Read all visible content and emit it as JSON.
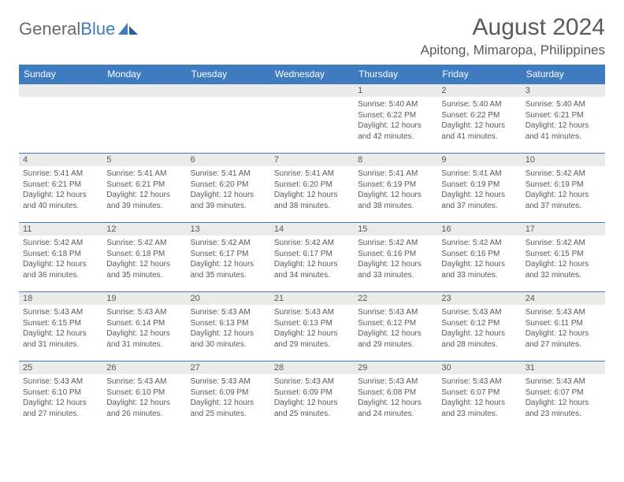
{
  "logo": {
    "text_gray": "General",
    "text_blue": "Blue"
  },
  "title": "August 2024",
  "location": "Apitong, Mimaropa, Philippines",
  "colors": {
    "header_bg": "#3f7bbf",
    "header_text": "#ffffff",
    "daynum_bg": "#ebebeb",
    "body_text": "#5a5a5a",
    "page_bg": "#ffffff",
    "row_border": "#3f7bbf"
  },
  "typography": {
    "title_fontsize": 30,
    "location_fontsize": 17,
    "weekday_fontsize": 12,
    "daynum_fontsize": 11,
    "body_fontsize": 10
  },
  "weekdays": [
    "Sunday",
    "Monday",
    "Tuesday",
    "Wednesday",
    "Thursday",
    "Friday",
    "Saturday"
  ],
  "weeks": [
    [
      null,
      null,
      null,
      null,
      {
        "n": "1",
        "sr": "5:40 AM",
        "ss": "6:22 PM",
        "dl": "12 hours and 42 minutes."
      },
      {
        "n": "2",
        "sr": "5:40 AM",
        "ss": "6:22 PM",
        "dl": "12 hours and 41 minutes."
      },
      {
        "n": "3",
        "sr": "5:40 AM",
        "ss": "6:21 PM",
        "dl": "12 hours and 41 minutes."
      }
    ],
    [
      {
        "n": "4",
        "sr": "5:41 AM",
        "ss": "6:21 PM",
        "dl": "12 hours and 40 minutes."
      },
      {
        "n": "5",
        "sr": "5:41 AM",
        "ss": "6:21 PM",
        "dl": "12 hours and 39 minutes."
      },
      {
        "n": "6",
        "sr": "5:41 AM",
        "ss": "6:20 PM",
        "dl": "12 hours and 39 minutes."
      },
      {
        "n": "7",
        "sr": "5:41 AM",
        "ss": "6:20 PM",
        "dl": "12 hours and 38 minutes."
      },
      {
        "n": "8",
        "sr": "5:41 AM",
        "ss": "6:19 PM",
        "dl": "12 hours and 38 minutes."
      },
      {
        "n": "9",
        "sr": "5:41 AM",
        "ss": "6:19 PM",
        "dl": "12 hours and 37 minutes."
      },
      {
        "n": "10",
        "sr": "5:42 AM",
        "ss": "6:19 PM",
        "dl": "12 hours and 37 minutes."
      }
    ],
    [
      {
        "n": "11",
        "sr": "5:42 AM",
        "ss": "6:18 PM",
        "dl": "12 hours and 36 minutes."
      },
      {
        "n": "12",
        "sr": "5:42 AM",
        "ss": "6:18 PM",
        "dl": "12 hours and 35 minutes."
      },
      {
        "n": "13",
        "sr": "5:42 AM",
        "ss": "6:17 PM",
        "dl": "12 hours and 35 minutes."
      },
      {
        "n": "14",
        "sr": "5:42 AM",
        "ss": "6:17 PM",
        "dl": "12 hours and 34 minutes."
      },
      {
        "n": "15",
        "sr": "5:42 AM",
        "ss": "6:16 PM",
        "dl": "12 hours and 33 minutes."
      },
      {
        "n": "16",
        "sr": "5:42 AM",
        "ss": "6:16 PM",
        "dl": "12 hours and 33 minutes."
      },
      {
        "n": "17",
        "sr": "5:42 AM",
        "ss": "6:15 PM",
        "dl": "12 hours and 32 minutes."
      }
    ],
    [
      {
        "n": "18",
        "sr": "5:43 AM",
        "ss": "6:15 PM",
        "dl": "12 hours and 31 minutes."
      },
      {
        "n": "19",
        "sr": "5:43 AM",
        "ss": "6:14 PM",
        "dl": "12 hours and 31 minutes."
      },
      {
        "n": "20",
        "sr": "5:43 AM",
        "ss": "6:13 PM",
        "dl": "12 hours and 30 minutes."
      },
      {
        "n": "21",
        "sr": "5:43 AM",
        "ss": "6:13 PM",
        "dl": "12 hours and 29 minutes."
      },
      {
        "n": "22",
        "sr": "5:43 AM",
        "ss": "6:12 PM",
        "dl": "12 hours and 29 minutes."
      },
      {
        "n": "23",
        "sr": "5:43 AM",
        "ss": "6:12 PM",
        "dl": "12 hours and 28 minutes."
      },
      {
        "n": "24",
        "sr": "5:43 AM",
        "ss": "6:11 PM",
        "dl": "12 hours and 27 minutes."
      }
    ],
    [
      {
        "n": "25",
        "sr": "5:43 AM",
        "ss": "6:10 PM",
        "dl": "12 hours and 27 minutes."
      },
      {
        "n": "26",
        "sr": "5:43 AM",
        "ss": "6:10 PM",
        "dl": "12 hours and 26 minutes."
      },
      {
        "n": "27",
        "sr": "5:43 AM",
        "ss": "6:09 PM",
        "dl": "12 hours and 25 minutes."
      },
      {
        "n": "28",
        "sr": "5:43 AM",
        "ss": "6:09 PM",
        "dl": "12 hours and 25 minutes."
      },
      {
        "n": "29",
        "sr": "5:43 AM",
        "ss": "6:08 PM",
        "dl": "12 hours and 24 minutes."
      },
      {
        "n": "30",
        "sr": "5:43 AM",
        "ss": "6:07 PM",
        "dl": "12 hours and 23 minutes."
      },
      {
        "n": "31",
        "sr": "5:43 AM",
        "ss": "6:07 PM",
        "dl": "12 hours and 23 minutes."
      }
    ]
  ],
  "labels": {
    "sunrise": "Sunrise:",
    "sunset": "Sunset:",
    "daylight": "Daylight:"
  }
}
